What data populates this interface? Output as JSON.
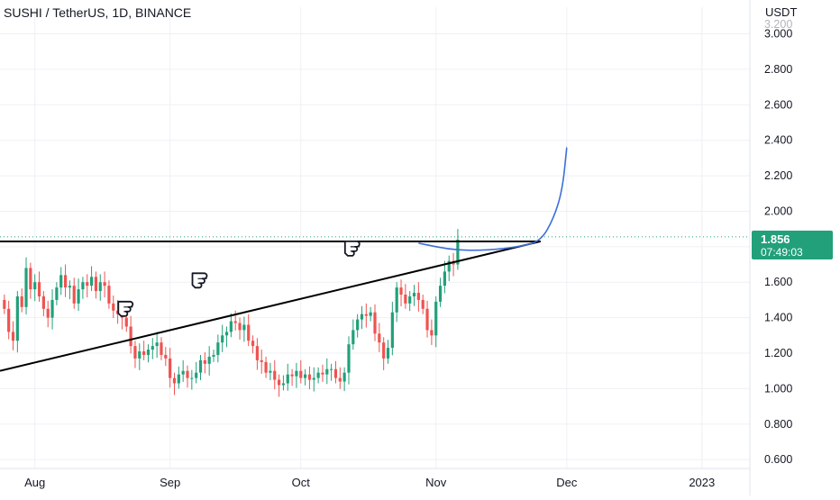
{
  "header": {
    "title": "SUSHI / TetherUS, 1D, BINANCE",
    "currency": "USDT"
  },
  "price_badge": {
    "price": "1.856",
    "countdown": "07:49:03",
    "color": "#22a07a"
  },
  "colors": {
    "up": "#22a07a",
    "down": "#ef5350",
    "projection": "#3c6fd8",
    "trendline": "#000000",
    "grid": "#eef0f3"
  },
  "chart_data": {
    "type": "candlestick",
    "title": "SUSHI / TetherUS, 1D, BINANCE",
    "y_axis": {
      "label": "USDT",
      "ticks": [
        "0.600",
        "0.800",
        "1.000",
        "1.200",
        "1.400",
        "1.600",
        "1.800",
        "2.000",
        "2.200",
        "2.400",
        "2.600",
        "2.800",
        "3.000"
      ],
      "range": [
        0.55,
        3.15
      ]
    },
    "x_axis": {
      "ticks": [
        {
          "label": "Aug",
          "x": "2022-08-01"
        },
        {
          "label": "Sep",
          "x": "2022-09-01"
        },
        {
          "label": "Oct",
          "x": "2022-10-01"
        },
        {
          "label": "Nov",
          "x": "2022-11-01"
        },
        {
          "label": "Dec",
          "x": "2022-12-01"
        },
        {
          "label": "2023",
          "x": "2023-01-01"
        }
      ],
      "range": [
        "2022-07-24",
        "2023-01-12"
      ]
    },
    "last_price": 1.856,
    "candles_close": [
      1.45,
      1.32,
      1.27,
      1.52,
      1.46,
      1.68,
      1.56,
      1.6,
      1.52,
      1.45,
      1.4,
      1.5,
      1.57,
      1.64,
      1.57,
      1.58,
      1.48,
      1.56,
      1.6,
      1.58,
      1.63,
      1.55,
      1.6,
      1.58,
      1.48,
      1.44,
      1.42,
      1.4,
      1.35,
      1.24,
      1.17,
      1.21,
      1.19,
      1.22,
      1.24,
      1.26,
      1.19,
      1.17,
      1.06,
      1.03,
      1.08,
      1.1,
      1.06,
      1.06,
      1.09,
      1.16,
      1.14,
      1.18,
      1.19,
      1.26,
      1.3,
      1.32,
      1.38,
      1.37,
      1.33,
      1.36,
      1.27,
      1.24,
      1.16,
      1.15,
      1.09,
      1.1,
      1.05,
      1.02,
      1.03,
      1.08,
      1.07,
      1.1,
      1.06,
      1.08,
      1.05,
      1.06,
      1.09,
      1.08,
      1.11,
      1.11,
      1.06,
      1.04,
      1.09,
      1.25,
      1.33,
      1.39,
      1.42,
      1.41,
      1.43,
      1.31,
      1.26,
      1.17,
      1.23,
      1.43,
      1.57,
      1.53,
      1.48,
      1.52,
      1.54,
      1.5,
      1.45,
      1.33,
      1.3,
      1.49,
      1.58,
      1.66,
      1.72,
      1.7,
      1.84
    ],
    "resistance_level": 1.83,
    "trendline": [
      {
        "x": "2022-07-24",
        "y": 1.1
      },
      {
        "x": "2022-11-25",
        "y": 1.83
      }
    ],
    "projection": [
      {
        "x": "2022-10-28",
        "y": 1.82
      },
      {
        "x": "2022-11-05",
        "y": 1.78
      },
      {
        "x": "2022-11-13",
        "y": 1.78
      },
      {
        "x": "2022-11-20",
        "y": 1.8
      },
      {
        "x": "2022-11-25",
        "y": 1.83
      },
      {
        "x": "2022-11-28",
        "y": 1.96
      },
      {
        "x": "2022-11-30",
        "y": 2.12
      },
      {
        "x": "2022-12-01",
        "y": 2.36
      }
    ],
    "annotations": [
      {
        "icon": "pointing-hand-icon",
        "x": "2022-08-22",
        "y": 1.46
      },
      {
        "icon": "pointing-hand-icon",
        "x": "2022-09-08",
        "y": 1.62
      },
      {
        "icon": "pointing-hand-icon",
        "x": "2022-10-13",
        "y": 1.8
      }
    ]
  }
}
